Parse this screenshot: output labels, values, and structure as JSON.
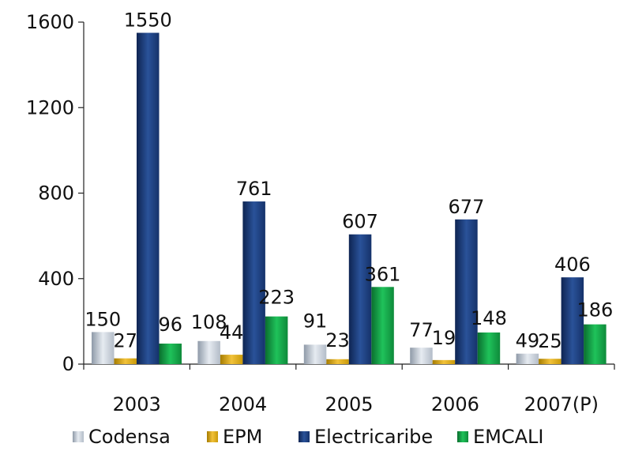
{
  "chart_data": {
    "type": "bar",
    "categories": [
      "2003",
      "2004",
      "2005",
      "2006",
      "2007(P)"
    ],
    "series": [
      {
        "name": "Codensa",
        "values": [
          150,
          108,
          91,
          77,
          49
        ],
        "color": "#c3cbd6"
      },
      {
        "name": "EPM",
        "values": [
          27,
          44,
          23,
          19,
          25
        ],
        "color": "#d9a80e"
      },
      {
        "name": "Electricaribe",
        "values": [
          1550,
          761,
          607,
          677,
          406
        ],
        "color": "#1b3d78"
      },
      {
        "name": "EMCALI",
        "values": [
          96,
          223,
          361,
          148,
          186
        ],
        "color": "#129a44"
      }
    ],
    "ylim": [
      0,
      1600
    ],
    "yticks": [
      "0",
      "400",
      "800",
      "1200",
      "1600"
    ],
    "grid": false,
    "legend_position": "bottom"
  }
}
